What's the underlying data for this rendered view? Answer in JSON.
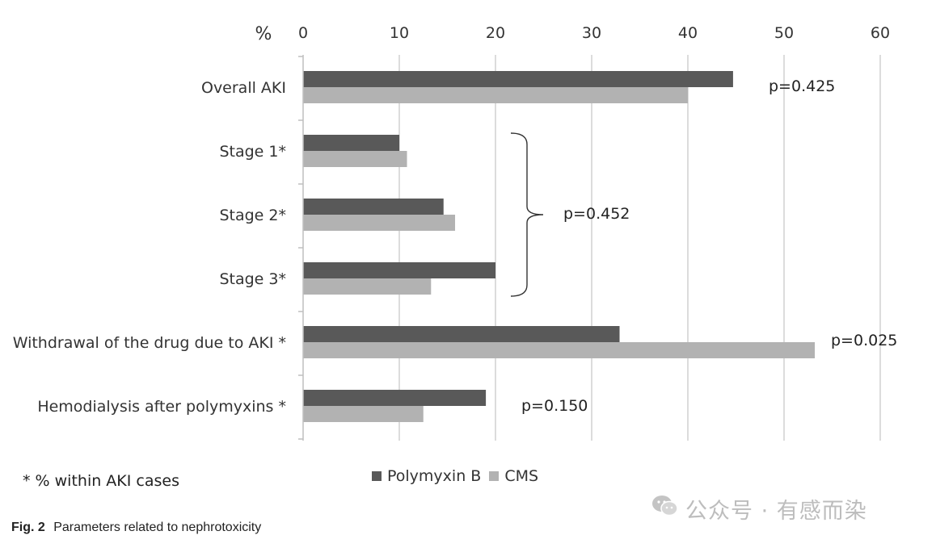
{
  "chart_data": {
    "type": "bar",
    "orientation": "horizontal",
    "unit_label": "%",
    "categories": [
      "Overall AKI",
      "Stage 1*",
      "Stage 2*",
      "Stage 3*",
      "Withdrawal of the drug due to AKI *",
      "Hemodialysis after polymyxins *"
    ],
    "series": [
      {
        "name": "Polymyxin B",
        "color": "#595959",
        "values": [
          44.7,
          10.0,
          14.6,
          20.0,
          32.9,
          19.0
        ]
      },
      {
        "name": "CMS",
        "color": "#b2b2b2",
        "values": [
          40.0,
          10.8,
          15.8,
          13.3,
          53.2,
          12.5
        ]
      }
    ],
    "xlim": [
      0,
      60
    ],
    "xticks": [
      0,
      10,
      20,
      30,
      40,
      50,
      60
    ],
    "xtick_labels": [
      "0",
      "10",
      "20",
      "30",
      "40",
      "50",
      "60"
    ],
    "grid": "vertical",
    "legend_position": "bottom",
    "annotations": [
      {
        "text": "p=0.425",
        "category_index": 0
      },
      {
        "text": "p=0.452",
        "category_range": [
          1,
          3
        ],
        "bracket": true
      },
      {
        "text": "p=0.025",
        "category_index": 4
      },
      {
        "text": "p=0.150",
        "category_index": 5
      }
    ]
  },
  "footnote": "* % within AKI cases",
  "caption": {
    "label": "Fig. 2",
    "text": "Parameters related to nephrotoxicity"
  },
  "watermark": {
    "text": "公众号 · 有感而染",
    "icon": "wechat-icon"
  }
}
